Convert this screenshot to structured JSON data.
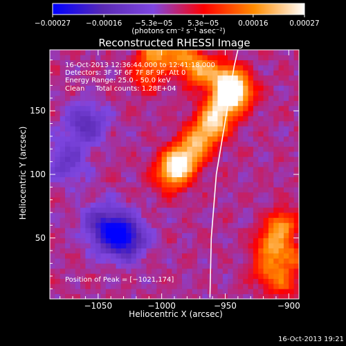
{
  "chart_data": {
    "type": "heatmap",
    "title": "Reconstructed RHESSI Image",
    "xlabel": "Heliocentric X (arcsec)",
    "ylabel": "Heliocentric Y (arcsec)",
    "xlim": [
      -1088,
      -892
    ],
    "ylim": [
      2,
      198
    ],
    "xticks": [
      -1050,
      -1000,
      -950,
      -900
    ],
    "xtick_labels": [
      "−1050",
      "−1000",
      "−950",
      "−900"
    ],
    "yticks": [
      50,
      100,
      150
    ],
    "ytick_labels": [
      "50",
      "100",
      "150"
    ],
    "colorbar": {
      "range": [
        -0.00027,
        0.00027
      ],
      "ticks": [
        -0.00027,
        -0.00016,
        -5.3e-05,
        5.3e-05,
        0.00016,
        0.00027
      ],
      "tick_labels": [
        "−0.00027",
        "−0.00016",
        "−5.3e−05",
        "5.3e−05",
        "0.00016",
        "0.00027"
      ],
      "unit_label": "(photons cm⁻² s⁻¹ asec⁻²)",
      "colormap": [
        "#0000ff",
        "#5a2ab4",
        "#7e46e0",
        "#ff0000",
        "#ff8c00",
        "#ffffff"
      ]
    },
    "annotations": [
      "16-Oct-2013 12:36:44.000 to 12:41:18.000",
      "Detectors: 3F 5F 6F 7F 8F 9F, Att 0",
      "Energy Range: 25.0 - 50.0 keV",
      "Clean     Total counts: 1.28E+04"
    ],
    "peak_text": "Position of Peak = [−1021,174]",
    "peak_position": [
      -1021,
      174
    ],
    "limb_curve": [
      [
        -962,
        3
      ],
      [
        -961,
        50
      ],
      [
        -957,
        100
      ],
      [
        -952,
        130
      ],
      [
        -947,
        160
      ],
      [
        -943,
        185
      ],
      [
        -940,
        198
      ]
    ],
    "footer": "16-Oct-2013 19:21",
    "features": {
      "bright_band": [
        {
          "x": -1005,
          "y": 197,
          "v": 0.00017
        },
        {
          "x": -985,
          "y": 193,
          "v": 0.00015
        },
        {
          "x": -970,
          "y": 182,
          "v": 0.00018
        },
        {
          "x": -950,
          "y": 175,
          "v": 0.00021
        },
        {
          "x": -940,
          "y": 165,
          "v": 0.00024
        },
        {
          "x": -952,
          "y": 155,
          "v": 0.0002
        },
        {
          "x": -960,
          "y": 140,
          "v": 0.00022
        },
        {
          "x": -972,
          "y": 125,
          "v": 0.00019
        },
        {
          "x": -985,
          "y": 110,
          "v": 0.00025
        },
        {
          "x": -993,
          "y": 100,
          "v": 0.00018
        },
        {
          "x": -1012,
          "y": 178,
          "v": 0.00012
        }
      ],
      "right_source": [
        {
          "x": -905,
          "y": 60,
          "v": 0.00019
        },
        {
          "x": -915,
          "y": 45,
          "v": 0.00017
        },
        {
          "x": -900,
          "y": 35,
          "v": 0.00015
        },
        {
          "x": -918,
          "y": 25,
          "v": 0.00013
        },
        {
          "x": -905,
          "y": 15,
          "v": 0.00012
        }
      ],
      "negative_regions": [
        {
          "x": -1030,
          "y": 50,
          "v": -0.00024
        },
        {
          "x": -1045,
          "y": 60,
          "v": -0.00016
        },
        {
          "x": -1060,
          "y": 140,
          "v": -0.00013
        },
        {
          "x": -1075,
          "y": 110,
          "v": -0.0001
        }
      ]
    }
  }
}
